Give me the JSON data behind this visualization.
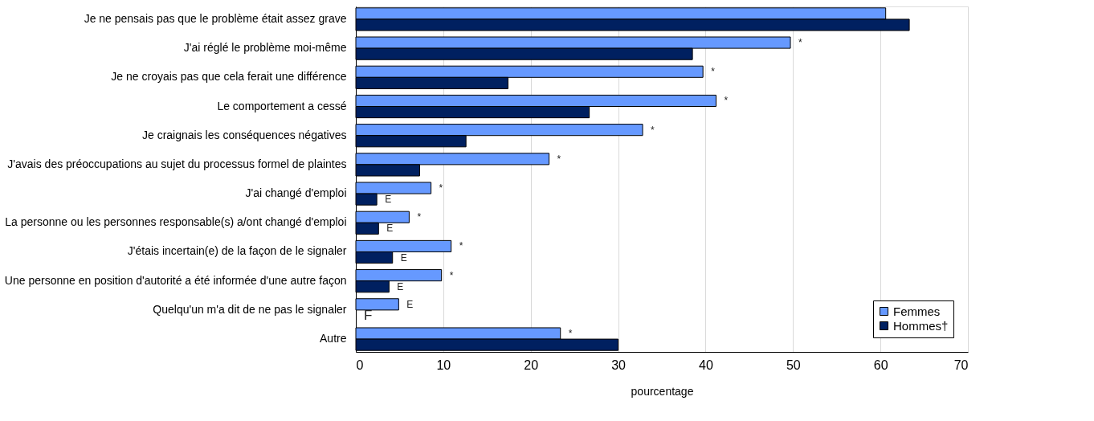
{
  "chart_data": {
    "type": "bar",
    "orientation": "horizontal",
    "xlabel": "pourcentage",
    "categories": [
      "Je ne pensais pas que le problème était assez grave",
      "J'ai réglé le problème moi-même",
      "Je ne croyais pas que cela ferait une différence",
      "Le comportement a cessé",
      "Je craignais les conséquences négatives",
      "J'avais des préoccupations au sujet du processus formel de plaintes",
      "J'ai changé d'emploi",
      "La personne ou les personnes responsable(s) a/ont changé d'emploi",
      "J'étais incertain(e) de la façon de le signaler",
      "Une personne en position d'autorité a été informée d'une autre façon",
      "Quelqu'un m'a dit de ne pas le signaler",
      "Autre"
    ],
    "series": [
      {
        "name": "Femmes",
        "color": "#6699ff",
        "values": [
          60.6,
          49.7,
          39.7,
          41.2,
          32.8,
          22.1,
          8.6,
          6.1,
          10.9,
          9.8,
          4.9,
          23.4
        ],
        "value_labels": [
          null,
          "*",
          "*",
          "*",
          "*",
          "*",
          "*",
          "*",
          "*",
          "*",
          "E",
          "*"
        ]
      },
      {
        "name": "Hommes†",
        "color": "#002060",
        "values": [
          63.3,
          38.5,
          17.4,
          26.7,
          12.6,
          7.3,
          2.4,
          2.6,
          4.2,
          3.8,
          null,
          30.0
        ],
        "value_labels": [
          null,
          null,
          null,
          null,
          null,
          null,
          "E",
          "E",
          "E",
          "E",
          "F",
          null
        ]
      }
    ],
    "xlim": [
      0,
      70
    ],
    "xticks": [
      0,
      10,
      20,
      30,
      40,
      50,
      60,
      70
    ],
    "grid": "x",
    "legend": "bottom right"
  }
}
